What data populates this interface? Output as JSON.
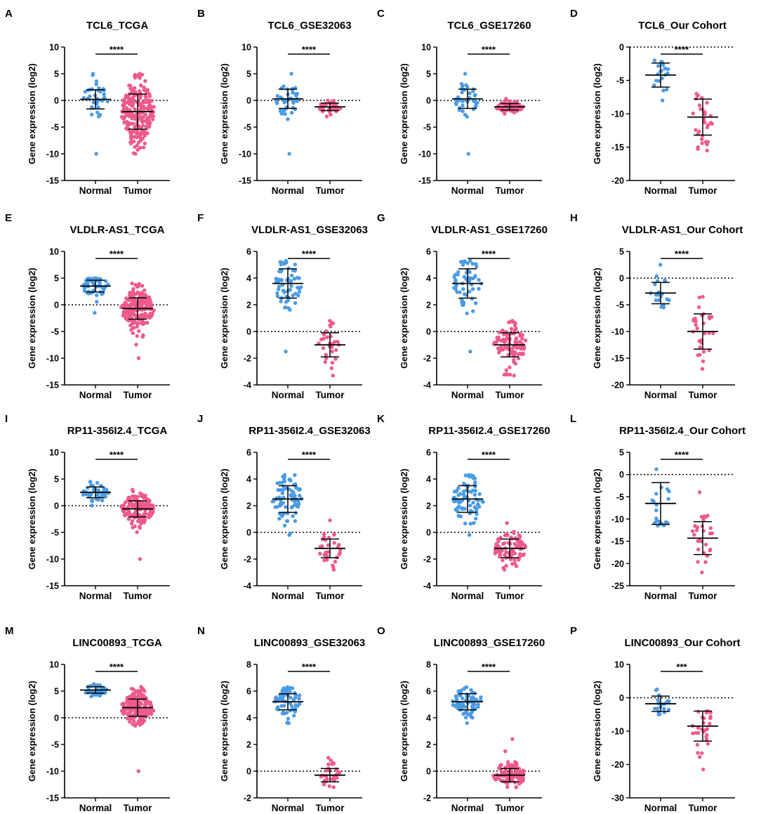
{
  "figure": {
    "y_axis_label": "Gene expression (log2)",
    "colors": {
      "normal": "#4A9BE4",
      "tumor": "#EE5A8A",
      "axis": "#000000"
    }
  },
  "chart_data": [
    {
      "letter": "A",
      "title": "TCL6_TCGA",
      "type": "scatter",
      "categories": [
        "Normal",
        "Tumor"
      ],
      "ylim": [
        -15,
        10
      ],
      "ticks": [
        10,
        5,
        0,
        -5,
        -10,
        -15
      ],
      "zero_line": true,
      "sig": "****",
      "series": [
        {
          "name": "Normal",
          "n": 40,
          "mean": 0.2,
          "sd": 1.8,
          "min": -10,
          "max": 5
        },
        {
          "name": "Tumor",
          "n": 220,
          "mean": -2.1,
          "sd": 3.3,
          "min": -10,
          "max": 5
        }
      ]
    },
    {
      "letter": "B",
      "title": "TCL6_GSE32063",
      "type": "scatter",
      "categories": [
        "Normal",
        "Tumor"
      ],
      "ylim": [
        -15,
        10
      ],
      "ticks": [
        10,
        5,
        0,
        -5,
        -10,
        -15
      ],
      "zero_line": true,
      "sig": "****",
      "series": [
        {
          "name": "Normal",
          "n": 40,
          "mean": 0.3,
          "sd": 1.8,
          "min": -10,
          "max": 5
        },
        {
          "name": "Tumor",
          "n": 40,
          "mean": -1.2,
          "sd": 0.7,
          "min": -3,
          "max": 0
        }
      ]
    },
    {
      "letter": "C",
      "title": "TCL6_GSE17260",
      "type": "scatter",
      "categories": [
        "Normal",
        "Tumor"
      ],
      "ylim": [
        -15,
        10
      ],
      "ticks": [
        10,
        5,
        0,
        -5,
        -10,
        -15
      ],
      "zero_line": true,
      "sig": "****",
      "series": [
        {
          "name": "Normal",
          "n": 40,
          "mean": 0.3,
          "sd": 1.8,
          "min": -10,
          "max": 5
        },
        {
          "name": "Tumor",
          "n": 60,
          "mean": -1.2,
          "sd": 0.6,
          "min": -2.5,
          "max": 0.3
        }
      ]
    },
    {
      "letter": "D",
      "title": "TCL6_Our Cohort",
      "type": "scatter",
      "categories": [
        "Normal",
        "Tumor"
      ],
      "ylim": [
        -20,
        0
      ],
      "ticks": [
        0,
        -5,
        -10,
        -15,
        -20
      ],
      "zero_line": true,
      "sig": "****",
      "series": [
        {
          "name": "Normal",
          "n": 20,
          "mean": -4.2,
          "sd": 1.8,
          "min": -8,
          "max": -2
        },
        {
          "name": "Tumor",
          "n": 30,
          "mean": -10.5,
          "sd": 2.7,
          "min": -15.5,
          "max": -7
        }
      ]
    },
    {
      "letter": "E",
      "title": "VLDLR-AS1_TCGA",
      "type": "scatter",
      "categories": [
        "Normal",
        "Tumor"
      ],
      "ylim": [
        -15,
        10
      ],
      "ticks": [
        10,
        5,
        0,
        -5,
        -10,
        -15
      ],
      "zero_line": true,
      "sig": "****",
      "series": [
        {
          "name": "Normal",
          "n": 50,
          "mean": 3.5,
          "sd": 1.1,
          "min": -1.5,
          "max": 5
        },
        {
          "name": "Tumor",
          "n": 200,
          "mean": -0.7,
          "sd": 2.0,
          "min": -10,
          "max": 4
        }
      ]
    },
    {
      "letter": "F",
      "title": "VLDLR-AS1_GSE32063",
      "type": "scatter",
      "categories": [
        "Normal",
        "Tumor"
      ],
      "ylim": [
        -4,
        6
      ],
      "ticks": [
        6,
        4,
        2,
        0,
        -2,
        -4
      ],
      "zero_line": true,
      "sig": "****",
      "series": [
        {
          "name": "Normal",
          "n": 60,
          "mean": 3.6,
          "sd": 1.1,
          "min": -1.5,
          "max": 5.3
        },
        {
          "name": "Tumor",
          "n": 30,
          "mean": -1.0,
          "sd": 0.9,
          "min": -3.3,
          "max": 0.8
        }
      ]
    },
    {
      "letter": "G",
      "title": "VLDLR-AS1_GSE17260",
      "type": "scatter",
      "categories": [
        "Normal",
        "Tumor"
      ],
      "ylim": [
        -4,
        6
      ],
      "ticks": [
        6,
        4,
        2,
        0,
        -2,
        -4
      ],
      "zero_line": true,
      "sig": "****",
      "series": [
        {
          "name": "Normal",
          "n": 60,
          "mean": 3.6,
          "sd": 1.1,
          "min": -1.5,
          "max": 5.3
        },
        {
          "name": "Tumor",
          "n": 100,
          "mean": -1.0,
          "sd": 0.9,
          "min": -3.3,
          "max": 0.8
        }
      ]
    },
    {
      "letter": "H",
      "title": "VLDLR-AS1_Our Cohort",
      "type": "scatter",
      "categories": [
        "Normal",
        "Tumor"
      ],
      "ylim": [
        -20,
        5
      ],
      "ticks": [
        5,
        0,
        -5,
        -10,
        -15,
        -20
      ],
      "zero_line": true,
      "sig": "****",
      "series": [
        {
          "name": "Normal",
          "n": 20,
          "mean": -2.8,
          "sd": 2.0,
          "min": -5.5,
          "max": 2.5
        },
        {
          "name": "Tumor",
          "n": 30,
          "mean": -10.0,
          "sd": 3.3,
          "min": -17,
          "max": -3.5
        }
      ]
    },
    {
      "letter": "I",
      "title": "RP11-356I2.4_TCGA",
      "type": "scatter",
      "categories": [
        "Normal",
        "Tumor"
      ],
      "ylim": [
        -15,
        10
      ],
      "ticks": [
        10,
        5,
        0,
        -5,
        -10,
        -15
      ],
      "zero_line": true,
      "sig": "****",
      "series": [
        {
          "name": "Normal",
          "n": 50,
          "mean": 2.5,
          "sd": 1.0,
          "min": 0,
          "max": 4.5
        },
        {
          "name": "Tumor",
          "n": 150,
          "mean": -0.6,
          "sd": 1.5,
          "min": -10,
          "max": 3
        }
      ]
    },
    {
      "letter": "J",
      "title": "RP11-356I2.4_GSE32063",
      "type": "scatter",
      "categories": [
        "Normal",
        "Tumor"
      ],
      "ylim": [
        -4,
        6
      ],
      "ticks": [
        6,
        4,
        2,
        0,
        -2,
        -4
      ],
      "zero_line": true,
      "sig": "****",
      "series": [
        {
          "name": "Normal",
          "n": 80,
          "mean": 2.5,
          "sd": 1.0,
          "min": -0.2,
          "max": 4.3
        },
        {
          "name": "Tumor",
          "n": 30,
          "mean": -1.2,
          "sd": 0.7,
          "min": -2.8,
          "max": 0.9
        }
      ]
    },
    {
      "letter": "K",
      "title": "RP11-356I2.4_GSE17260",
      "type": "scatter",
      "categories": [
        "Normal",
        "Tumor"
      ],
      "ylim": [
        -4,
        6
      ],
      "ticks": [
        6,
        4,
        2,
        0,
        -2,
        -4
      ],
      "zero_line": true,
      "sig": "****",
      "series": [
        {
          "name": "Normal",
          "n": 80,
          "mean": 2.5,
          "sd": 1.0,
          "min": -0.2,
          "max": 4.3
        },
        {
          "name": "Tumor",
          "n": 90,
          "mean": -1.2,
          "sd": 0.7,
          "min": -2.8,
          "max": 0.7
        }
      ]
    },
    {
      "letter": "L",
      "title": "RP11-356I2.4_Our Cohort",
      "type": "scatter",
      "categories": [
        "Normal",
        "Tumor"
      ],
      "ylim": [
        -25,
        5
      ],
      "ticks": [
        5,
        0,
        -5,
        -10,
        -15,
        -20,
        -25
      ],
      "zero_line": true,
      "sig": "****",
      "series": [
        {
          "name": "Normal",
          "n": 20,
          "mean": -6.5,
          "sd": 4.7,
          "min": -11.5,
          "max": 1.2
        },
        {
          "name": "Tumor",
          "n": 30,
          "mean": -14.3,
          "sd": 3.7,
          "min": -22,
          "max": -4
        }
      ]
    },
    {
      "letter": "M",
      "title": "LINC00893_TCGA",
      "type": "scatter",
      "categories": [
        "Normal",
        "Tumor"
      ],
      "ylim": [
        -15,
        10
      ],
      "ticks": [
        10,
        5,
        0,
        -5,
        -10,
        -15
      ],
      "zero_line": true,
      "sig": "****",
      "series": [
        {
          "name": "Normal",
          "n": 40,
          "mean": 5.2,
          "sd": 0.6,
          "min": 4,
          "max": 6.3
        },
        {
          "name": "Tumor",
          "n": 180,
          "mean": 1.9,
          "sd": 1.6,
          "min": -10,
          "max": 5.8
        }
      ]
    },
    {
      "letter": "N",
      "title": "LINC00893_GSE32063",
      "type": "scatter",
      "categories": [
        "Normal",
        "Tumor"
      ],
      "ylim": [
        -2,
        8
      ],
      "ticks": [
        8,
        6,
        4,
        2,
        0,
        -2
      ],
      "zero_line": true,
      "sig": "****",
      "series": [
        {
          "name": "Normal",
          "n": 60,
          "mean": 5.2,
          "sd": 0.6,
          "min": 3.6,
          "max": 6.3
        },
        {
          "name": "Tumor",
          "n": 30,
          "mean": -0.3,
          "sd": 0.5,
          "min": -1.2,
          "max": 1
        }
      ]
    },
    {
      "letter": "O",
      "title": "LINC00893_GSE17260",
      "type": "scatter",
      "categories": [
        "Normal",
        "Tumor"
      ],
      "ylim": [
        -2,
        8
      ],
      "ticks": [
        8,
        6,
        4,
        2,
        0,
        -2
      ],
      "zero_line": true,
      "sig": "****",
      "series": [
        {
          "name": "Normal",
          "n": 70,
          "mean": 5.2,
          "sd": 0.6,
          "min": 3.6,
          "max": 6.3
        },
        {
          "name": "Tumor",
          "n": 90,
          "mean": -0.3,
          "sd": 0.5,
          "min": -1.2,
          "max": 2.4
        }
      ]
    },
    {
      "letter": "P",
      "title": "LINC00893_Our Cohort",
      "type": "scatter",
      "categories": [
        "Normal",
        "Tumor"
      ],
      "ylim": [
        -30,
        10
      ],
      "ticks": [
        10,
        0,
        -10,
        -20,
        -30
      ],
      "zero_line": true,
      "sig": "***",
      "series": [
        {
          "name": "Normal",
          "n": 20,
          "mean": -1.8,
          "sd": 2.3,
          "min": -5,
          "max": 2.5
        },
        {
          "name": "Tumor",
          "n": 30,
          "mean": -8.5,
          "sd": 4.5,
          "min": -21.5,
          "max": -4
        }
      ]
    }
  ]
}
